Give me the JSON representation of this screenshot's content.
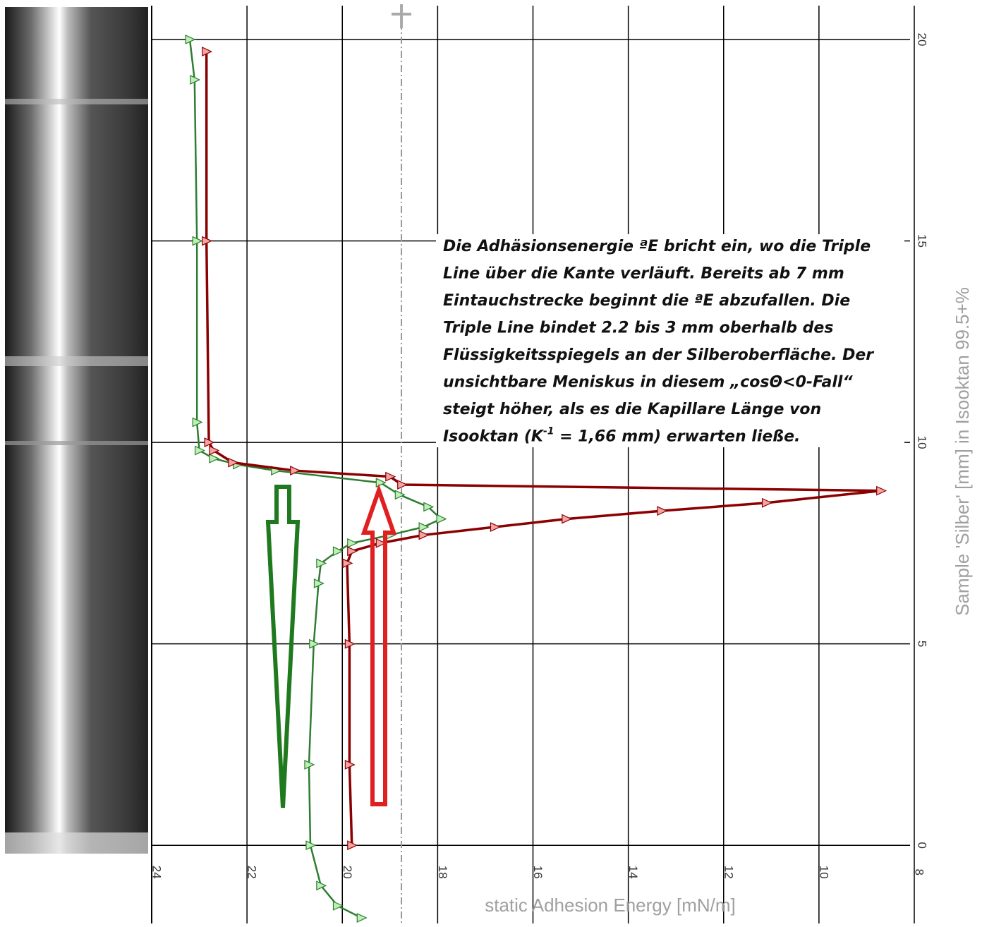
{
  "chart_data": {
    "type": "line",
    "xlabel": "static Adhesion Energy [mN/m]",
    "ylabel": "Sample 'Silber' [mm] in Isooktan 99.5+%",
    "xlim": [
      24,
      8
    ],
    "ylim": [
      -1.94,
      20.84
    ],
    "xticks": [
      24,
      22,
      20,
      18,
      16,
      14,
      12,
      10,
      8
    ],
    "yticks": [
      0,
      5,
      10,
      15,
      20
    ],
    "grid": true,
    "reference_x": 18.76,
    "series": [
      {
        "color": "#2e7d32",
        "marker_fill": "#bdf0b4",
        "x": [
          19.6,
          20.1,
          20.45,
          20.67,
          20.7,
          20.6,
          20.5,
          20.45,
          20.1,
          19.8,
          19.0,
          18.3,
          17.93,
          18.2,
          18.8,
          19.2,
          21.4,
          22.2,
          22.7,
          23.0,
          23.05,
          23.05,
          23.1,
          23.2
        ],
        "y": [
          -1.8,
          -1.5,
          -1,
          0,
          2,
          5,
          6.5,
          7,
          7.3,
          7.5,
          7.7,
          7.9,
          8.1,
          8.4,
          8.7,
          9.0,
          9.3,
          9.45,
          9.6,
          9.8,
          10.5,
          15,
          19,
          20
        ]
      },
      {
        "color": "#8b0000",
        "marker_fill": "#f4a4a4",
        "x": [
          19.8,
          19.85,
          19.85,
          19.9,
          19.8,
          19.2,
          18.3,
          16.8,
          15.3,
          13.3,
          11.1,
          8.7,
          18.75,
          19.0,
          21.0,
          22.3,
          22.7,
          22.8,
          22.85,
          22.85
        ],
        "y": [
          0,
          2,
          5,
          7,
          7.3,
          7.5,
          7.7,
          7.9,
          8.1,
          8.3,
          8.5,
          8.8,
          8.95,
          9.15,
          9.3,
          9.5,
          9.8,
          10,
          15,
          19.7
        ]
      }
    ],
    "annotation_lines": [
      "Die Adhäsionsenergie ªE bricht ein, wo die Triple",
      "Line über die Kante verläuft.  Bereits ab 7 mm",
      "Eintauchstrecke beginnt die ªE abzufallen. Die",
      "Triple Line bindet 2.2 bis 3 mm oberhalb des",
      "Flüssigkeitsspiegels an der Silberoberfläche. Der",
      "unsichtbare Meniskus in diesem „cosΘ<0-Fall“",
      "steigt höher, als es die Kapillare Länge von"
    ],
    "annotation_last": [
      "Isooktan (K",
      "-1",
      " = 1,66 mm) erwarten ließe."
    ]
  }
}
